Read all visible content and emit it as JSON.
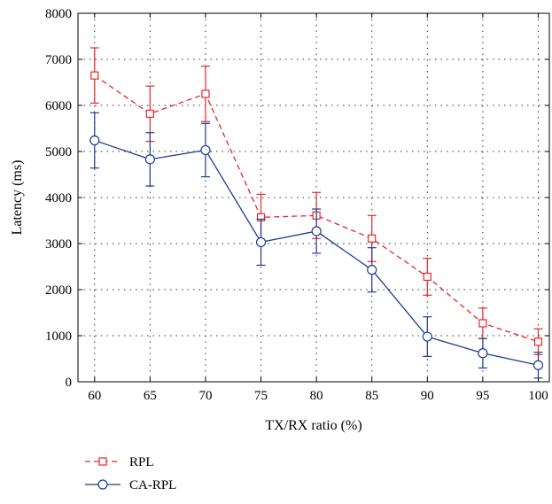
{
  "chart_data": {
    "type": "line",
    "xlabel": "TX/RX ratio (%)",
    "ylabel": "Latency (ms)",
    "x": [
      60,
      65,
      70,
      75,
      80,
      85,
      90,
      95,
      100
    ],
    "xlim": [
      58.5,
      101
    ],
    "ylim": [
      0,
      8000
    ],
    "x_ticks": [
      "60",
      "65",
      "70",
      "75",
      "80",
      "85",
      "90",
      "95",
      "100"
    ],
    "y_ticks": [
      "0",
      "1000",
      "2000",
      "3000",
      "4000",
      "5000",
      "6000",
      "7000",
      "8000"
    ],
    "grid": true,
    "legend_position": "bottom-left, below plot",
    "series": [
      {
        "name": "RPL",
        "color": "#e8262d",
        "line_style": "dashed",
        "marker": "square",
        "values": [
          6650,
          5820,
          6250,
          3570,
          3610,
          3110,
          2280,
          1270,
          870
        ],
        "error": [
          600,
          600,
          600,
          500,
          500,
          500,
          400,
          330,
          280
        ]
      },
      {
        "name": "CA-RPL",
        "color": "#1f3a8f",
        "line_style": "solid",
        "marker": "circle",
        "values": [
          5240,
          4830,
          5030,
          3030,
          3270,
          2430,
          980,
          620,
          360
        ],
        "error": [
          600,
          580,
          580,
          500,
          480,
          480,
          430,
          320,
          280
        ]
      }
    ]
  }
}
